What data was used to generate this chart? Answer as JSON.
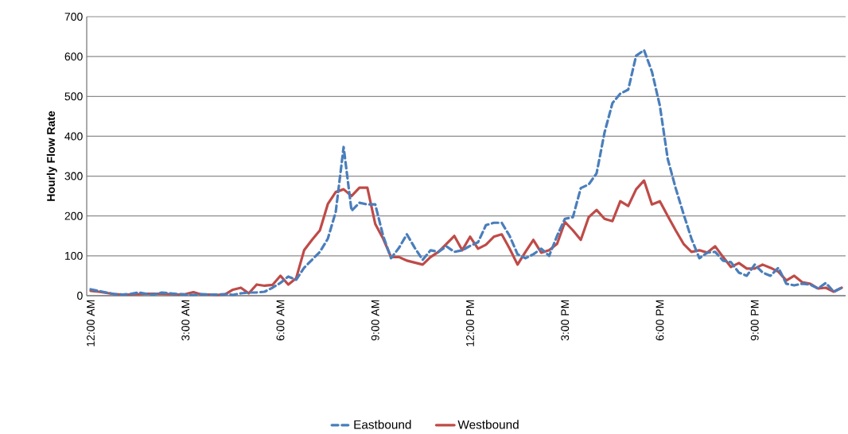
{
  "chart_data": {
    "type": "line",
    "ylabel": "Hourly Flow Rate",
    "categories": [
      "12:00 AM",
      null,
      null,
      null,
      null,
      null,
      null,
      null,
      null,
      null,
      null,
      null,
      "3:00 AM",
      null,
      null,
      null,
      null,
      null,
      null,
      null,
      null,
      null,
      null,
      null,
      "6:00 AM",
      null,
      null,
      null,
      null,
      null,
      null,
      null,
      null,
      null,
      null,
      null,
      "9:00 AM",
      null,
      null,
      null,
      null,
      null,
      null,
      null,
      null,
      null,
      null,
      null,
      "12:00 PM",
      null,
      null,
      null,
      null,
      null,
      null,
      null,
      null,
      null,
      null,
      null,
      "3:00 PM",
      null,
      null,
      null,
      null,
      null,
      null,
      null,
      null,
      null,
      null,
      null,
      "6:00 PM",
      null,
      null,
      null,
      null,
      null,
      null,
      null,
      null,
      null,
      null,
      null,
      "9:00 PM",
      null,
      null,
      null,
      null,
      null,
      null,
      null,
      null,
      null,
      null,
      null
    ],
    "series": [
      {
        "name": "Eastbound",
        "color": "#4a7ebb",
        "line_style": "dashed",
        "values": [
          16,
          12,
          8,
          4,
          3,
          4,
          8,
          5,
          3,
          8,
          6,
          4,
          3,
          2,
          4,
          3,
          3,
          4,
          2,
          6,
          8,
          8,
          10,
          20,
          32,
          48,
          40,
          70,
          90,
          110,
          143,
          210,
          373,
          213,
          233,
          229,
          229,
          150,
          94,
          120,
          154,
          120,
          90,
          114,
          110,
          124,
          110,
          114,
          125,
          134,
          177,
          183,
          183,
          150,
          104,
          94,
          104,
          118,
          100,
          150,
          193,
          197,
          270,
          279,
          307,
          409,
          483,
          507,
          517,
          602,
          616,
          562,
          477,
          343,
          270,
          205,
          143,
          94,
          108,
          110,
          88,
          84,
          58,
          50,
          78,
          58,
          50,
          70,
          30,
          26,
          30,
          28,
          18,
          32,
          10,
          20
        ]
      },
      {
        "name": "Westbound",
        "color": "#be4b48",
        "line_style": "solid",
        "values": [
          12,
          10,
          7,
          4,
          3,
          3,
          4,
          5,
          5,
          5,
          4,
          3,
          4,
          9,
          3,
          3,
          2,
          3,
          15,
          20,
          6,
          28,
          25,
          27,
          50,
          28,
          44,
          114,
          140,
          164,
          230,
          260,
          267,
          250,
          271,
          271,
          180,
          143,
          97,
          97,
          88,
          83,
          78,
          97,
          110,
          130,
          150,
          114,
          148,
          118,
          128,
          148,
          154,
          118,
          78,
          110,
          140,
          108,
          114,
          130,
          185,
          164,
          140,
          197,
          215,
          193,
          187,
          237,
          225,
          267,
          289,
          229,
          237,
          200,
          164,
          130,
          110,
          114,
          108,
          124,
          97,
          72,
          82,
          68,
          68,
          78,
          70,
          60,
          38,
          50,
          34,
          30,
          18,
          20,
          10,
          20
        ]
      }
    ],
    "ylim": [
      0,
      700
    ],
    "yticks": [
      0,
      100,
      200,
      300,
      400,
      500,
      600,
      700
    ],
    "grid": "y",
    "legend": "bottom",
    "marker": "none"
  }
}
